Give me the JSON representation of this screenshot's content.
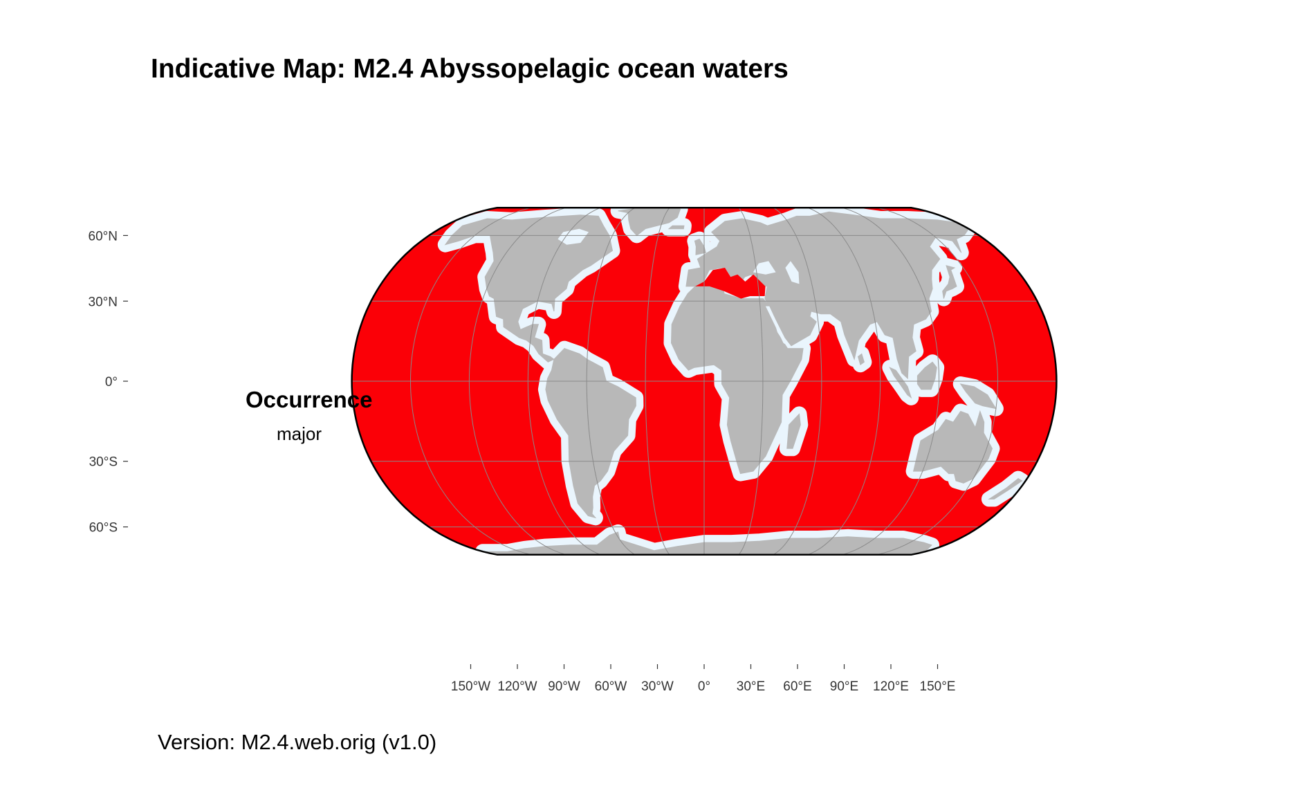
{
  "title": "Indicative Map: M2.4 Abyssopelagic ocean waters",
  "caption": "Version: M2.4.web.orig (v1.0)",
  "legend": {
    "title": "Occurrence",
    "items": [
      {
        "label": "major",
        "color": "#fb0007"
      }
    ]
  },
  "colors": {
    "ocean_major": "#fb0007",
    "shelf_water": "#eaf5fd",
    "land": "#b8b8b8",
    "graticule": "#8a8a8a",
    "outline": "#000000"
  },
  "projection": "Eckert IV (equal-area pseudocylindrical)",
  "latitude_labels": [
    "60°N",
    "30°N",
    "0°",
    "30°S",
    "60°S"
  ],
  "longitude_labels": [
    "150°W",
    "120°W",
    "90°W",
    "60°W",
    "30°W",
    "0°",
    "30°E",
    "60°E",
    "90°E",
    "120°E",
    "150°E"
  ]
}
